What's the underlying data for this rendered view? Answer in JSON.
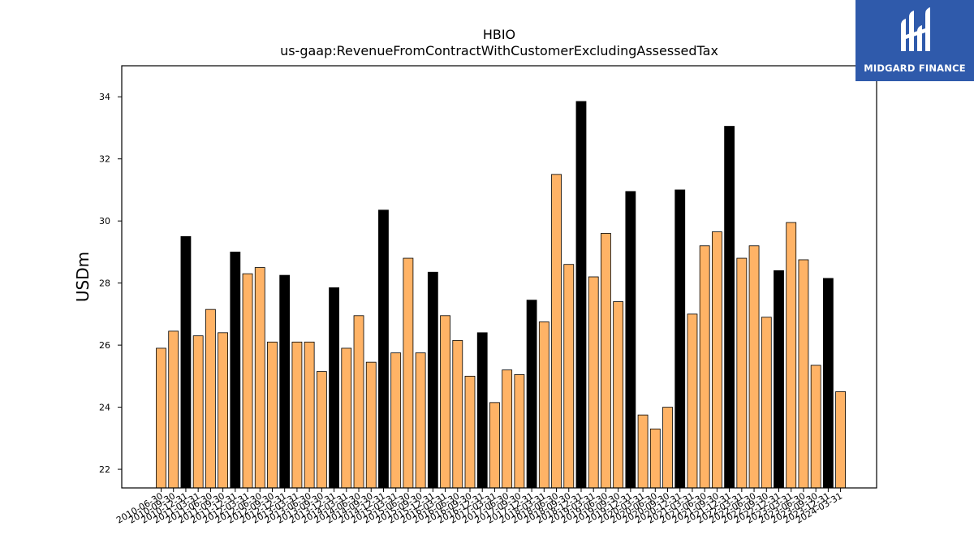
{
  "chart_data": {
    "type": "bar",
    "title": "HBIO",
    "subtitle": "us-gaap:RevenueFromContractWithCustomerExcludingAssessedTax",
    "xlabel": "",
    "ylabel": "USDm",
    "ylim": [
      21.4,
      35.0
    ],
    "yticks": [
      22,
      24,
      26,
      28,
      30,
      32,
      34
    ],
    "grid": false,
    "colors": {
      "quarter": "#ffb366",
      "year_end": "#000000",
      "edge": "#000000"
    },
    "categories": [
      "2010-06-30",
      "2010-09-30",
      "2010-12-31",
      "2011-03-31",
      "2011-06-30",
      "2011-09-30",
      "2011-12-31",
      "2012-03-31",
      "2012-06-30",
      "2012-09-30",
      "2012-12-31",
      "2013-03-31",
      "2013-06-30",
      "2013-09-30",
      "2013-12-31",
      "2014-03-31",
      "2014-06-30",
      "2014-09-30",
      "2014-12-31",
      "2015-03-31",
      "2015-06-30",
      "2015-09-30",
      "2015-12-31",
      "2016-03-31",
      "2016-06-30",
      "2016-09-30",
      "2016-12-31",
      "2017-03-31",
      "2017-06-30",
      "2017-09-30",
      "2017-12-31",
      "2018-03-31",
      "2018-06-30",
      "2018-09-30",
      "2018-12-31",
      "2019-03-31",
      "2019-06-30",
      "2019-09-30",
      "2019-12-31",
      "2020-03-31",
      "2020-06-30",
      "2020-09-30",
      "2020-12-31",
      "2021-03-31",
      "2021-06-30",
      "2021-09-30",
      "2021-12-31",
      "2022-03-31",
      "2022-06-30",
      "2022-09-30",
      "2022-12-31",
      "2023-03-31",
      "2023-06-30",
      "2023-09-30",
      "2023-12-31",
      "2024-03-31"
    ],
    "values": [
      25.9,
      26.45,
      29.5,
      26.3,
      27.15,
      26.4,
      29.0,
      28.3,
      28.5,
      26.1,
      28.25,
      26.1,
      26.1,
      25.15,
      27.85,
      25.9,
      26.95,
      25.45,
      30.35,
      25.75,
      28.8,
      25.75,
      28.35,
      26.95,
      26.15,
      25.0,
      26.4,
      24.15,
      25.2,
      25.05,
      27.45,
      26.75,
      31.5,
      28.6,
      33.85,
      28.2,
      29.6,
      27.4,
      30.95,
      23.75,
      23.3,
      24.0,
      31.0,
      27.0,
      29.2,
      29.65,
      33.05,
      28.8,
      29.2,
      26.9,
      28.4,
      29.95,
      28.75,
      25.35,
      28.15,
      24.5
    ],
    "bar_kind": [
      "q",
      "q",
      "y",
      "q",
      "q",
      "q",
      "y",
      "q",
      "q",
      "q",
      "y",
      "q",
      "q",
      "q",
      "y",
      "q",
      "q",
      "q",
      "y",
      "q",
      "q",
      "q",
      "y",
      "q",
      "q",
      "q",
      "y",
      "q",
      "q",
      "q",
      "y",
      "q",
      "q",
      "q",
      "y",
      "q",
      "q",
      "q",
      "y",
      "q",
      "q",
      "q",
      "y",
      "q",
      "q",
      "q",
      "y",
      "q",
      "q",
      "q",
      "y",
      "q",
      "q",
      "q",
      "y",
      "q"
    ]
  },
  "logo": {
    "text": "MIDGARD FINANCE",
    "background": "#2f5aab"
  }
}
